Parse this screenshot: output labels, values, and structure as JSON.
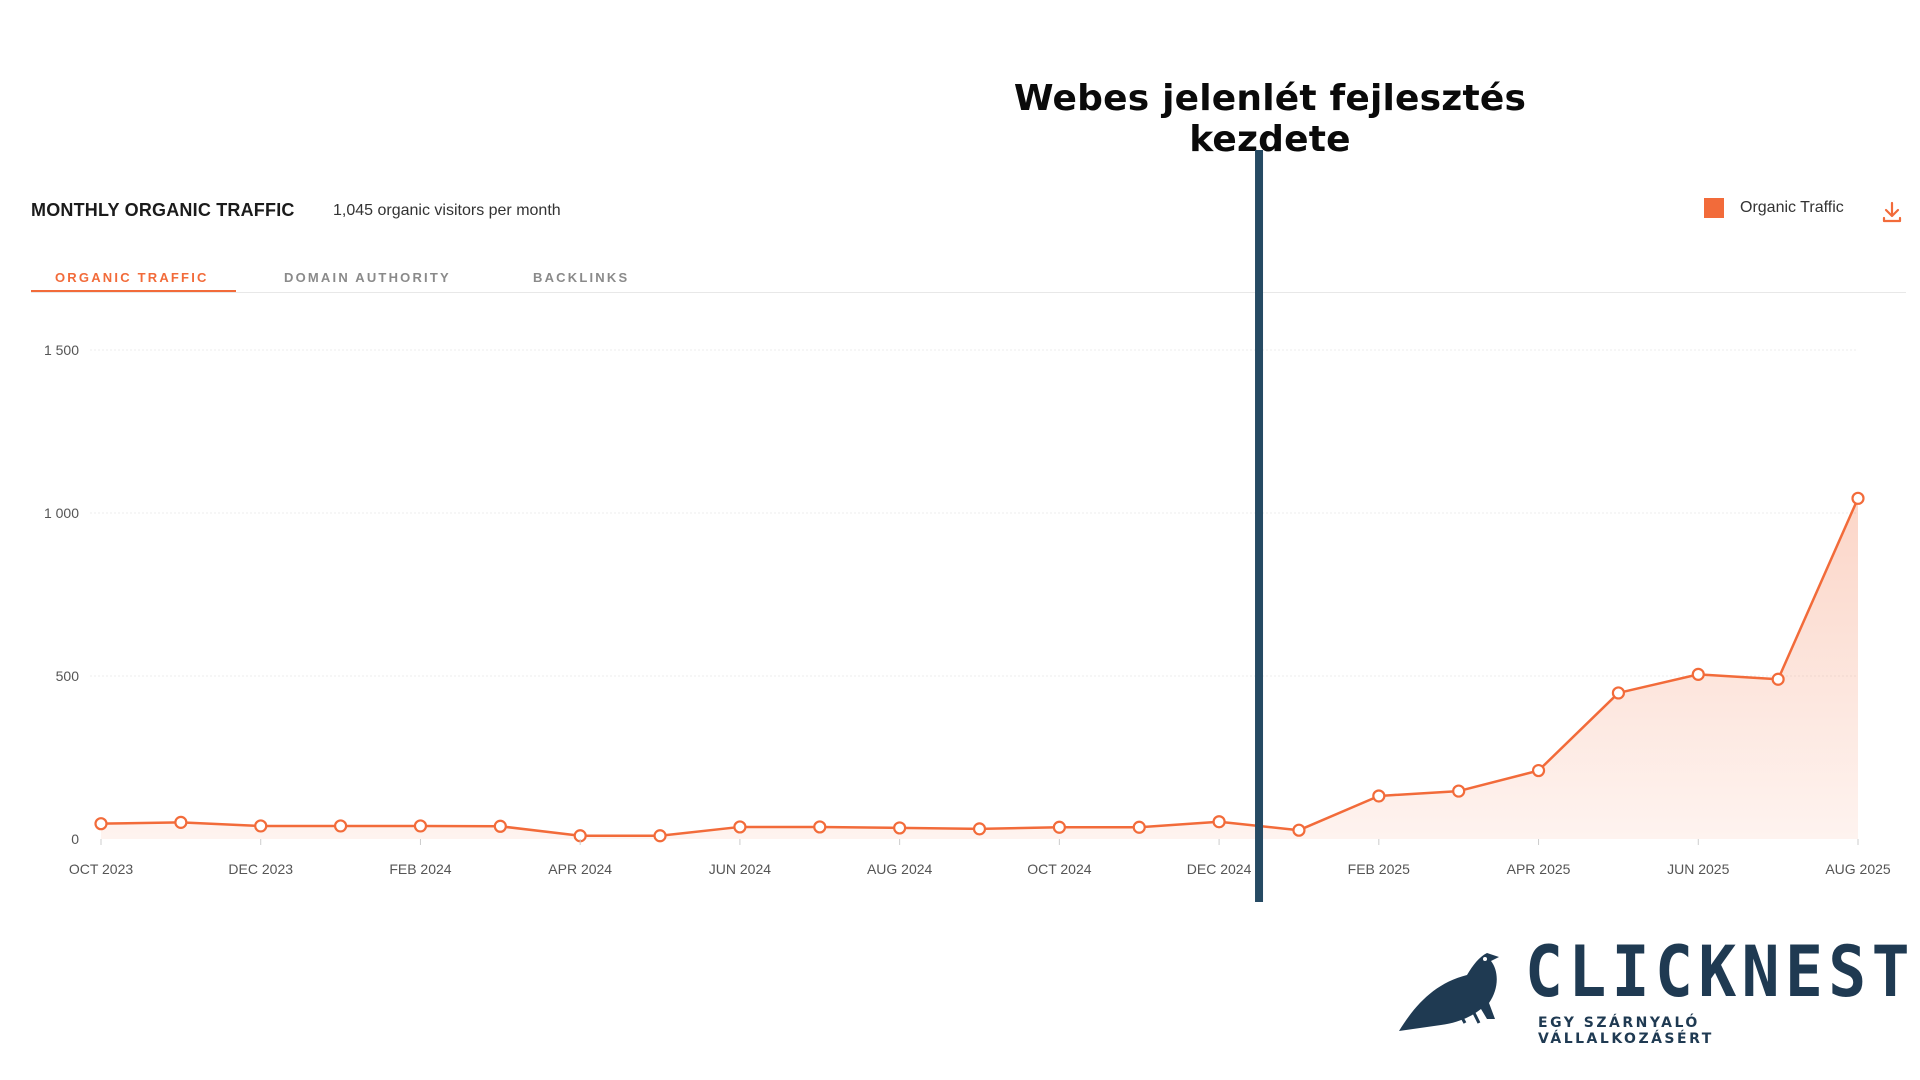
{
  "annotation": {
    "title": "Webes jelenlét fejlesztés kezdete",
    "marker_x": "JAN 2025"
  },
  "card": {
    "title": "MONTHLY ORGANIC TRAFFIC",
    "subtitle": "1,045 organic visitors per month",
    "legend_label": "Organic Traffic"
  },
  "tabs": [
    {
      "label": "ORGANIC TRAFFIC",
      "active": true
    },
    {
      "label": "DOMAIN AUTHORITY",
      "active": false
    },
    {
      "label": "BACKLINKS",
      "active": false
    }
  ],
  "brand": {
    "name": "CLICKNEST",
    "tagline": "EGY SZÁRNYALÓ VÁLLALKOZÁSÉRT"
  },
  "colors": {
    "accent": "#F26B3A",
    "marker": "#264A63",
    "brand": "#1F3A52"
  },
  "icons": {
    "download": "download-icon",
    "logo": "bird-logo-icon"
  },
  "chart_data": {
    "type": "area",
    "x": [
      "OCT 2023",
      "NOV 2023",
      "DEC 2023",
      "JAN 2024",
      "FEB 2024",
      "MAR 2024",
      "APR 2024",
      "MAY 2024",
      "JUN 2024",
      "JUL 2024",
      "AUG 2024",
      "SEP 2024",
      "OCT 2024",
      "NOV 2024",
      "DEC 2024",
      "JAN 2025",
      "FEB 2025",
      "MAR 2025",
      "APR 2025",
      "MAY 2025",
      "JUN 2025",
      "JUL 2025",
      "AUG 2025"
    ],
    "tick_labels": [
      "OCT 2023",
      "DEC 2023",
      "FEB 2024",
      "APR 2024",
      "JUN 2024",
      "AUG 2024",
      "OCT 2024",
      "DEC 2024",
      "FEB 2025",
      "APR 2025",
      "JUN 2025",
      "AUG 2025"
    ],
    "series": [
      {
        "name": "Organic Traffic",
        "values": [
          47,
          51,
          40,
          40,
          40,
          39,
          10,
          10,
          37,
          37,
          34,
          31,
          36,
          36,
          53,
          27,
          132,
          147,
          210,
          448,
          505,
          490,
          1045
        ]
      }
    ],
    "yticks": [
      "1 500",
      "1 000",
      "500",
      "0"
    ],
    "ytick_values": [
      1500,
      1000,
      500,
      0
    ],
    "ylim": [
      0,
      1500
    ],
    "grid": true,
    "legend": "top-right"
  }
}
